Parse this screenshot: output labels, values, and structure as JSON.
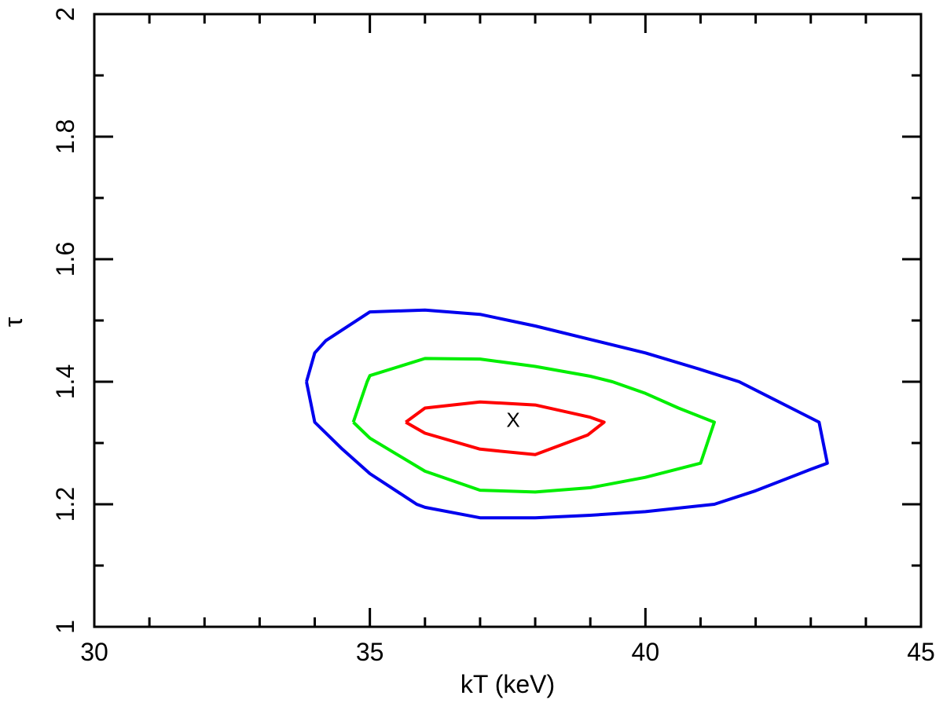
{
  "chart_data": {
    "type": "line",
    "xlabel": "kT (keV)",
    "ylabel": "τ",
    "xlim": [
      30,
      45
    ],
    "ylim": [
      1,
      2
    ],
    "x_major_ticks": [
      30,
      35,
      40,
      45
    ],
    "x_tick_labels": [
      "30",
      "35",
      "40",
      "45"
    ],
    "x_minor_ticks": [
      31,
      32,
      33,
      34,
      36,
      37,
      38,
      39,
      41,
      42,
      43,
      44
    ],
    "y_major_ticks": [
      1,
      1.2,
      1.4,
      1.6,
      1.8,
      2
    ],
    "y_tick_labels": [
      "1",
      "1.2",
      "1.4",
      "1.6",
      "1.8",
      "2"
    ],
    "y_minor_ticks": [
      1.1,
      1.3,
      1.5,
      1.7,
      1.9
    ],
    "grid": false,
    "best_fit": {
      "label": "X",
      "x": 37.6,
      "y": 1.338
    },
    "series": [
      {
        "color": "#ff0000",
        "points": [
          [
            35.65,
            1.334
          ],
          [
            36,
            1.357
          ],
          [
            37,
            1.367
          ],
          [
            38,
            1.362
          ],
          [
            39,
            1.342
          ],
          [
            39.25,
            1.334
          ],
          [
            38.95,
            1.313
          ],
          [
            38,
            1.281
          ],
          [
            37,
            1.29
          ],
          [
            36,
            1.316
          ],
          [
            35.65,
            1.334
          ]
        ]
      },
      {
        "color": "#00ee00",
        "points": [
          [
            34.7,
            1.334
          ],
          [
            34.95,
            1.4
          ],
          [
            35,
            1.41
          ],
          [
            36,
            1.438
          ],
          [
            37,
            1.437
          ],
          [
            38,
            1.425
          ],
          [
            39,
            1.409
          ],
          [
            39.4,
            1.4
          ],
          [
            40,
            1.381
          ],
          [
            40.6,
            1.357
          ],
          [
            41.25,
            1.334
          ],
          [
            41,
            1.267
          ],
          [
            40,
            1.244
          ],
          [
            39,
            1.227
          ],
          [
            38,
            1.22
          ],
          [
            37,
            1.223
          ],
          [
            36,
            1.254
          ],
          [
            35,
            1.308
          ],
          [
            34.7,
            1.334
          ]
        ]
      },
      {
        "color": "#0000ee",
        "points": [
          [
            33.85,
            1.4
          ],
          [
            34,
            1.447
          ],
          [
            34.2,
            1.467
          ],
          [
            35,
            1.514
          ],
          [
            36,
            1.517
          ],
          [
            37,
            1.51
          ],
          [
            38,
            1.491
          ],
          [
            39,
            1.469
          ],
          [
            40,
            1.447
          ],
          [
            41,
            1.42
          ],
          [
            41.7,
            1.4
          ],
          [
            43.15,
            1.334
          ],
          [
            43.3,
            1.267
          ],
          [
            43,
            1.257
          ],
          [
            42,
            1.222
          ],
          [
            41.25,
            1.2
          ],
          [
            40,
            1.188
          ],
          [
            39,
            1.182
          ],
          [
            38,
            1.178
          ],
          [
            37,
            1.178
          ],
          [
            36,
            1.195
          ],
          [
            35.85,
            1.2
          ],
          [
            35,
            1.25
          ],
          [
            34.5,
            1.29
          ],
          [
            34,
            1.334
          ],
          [
            33.85,
            1.4
          ]
        ]
      }
    ]
  }
}
